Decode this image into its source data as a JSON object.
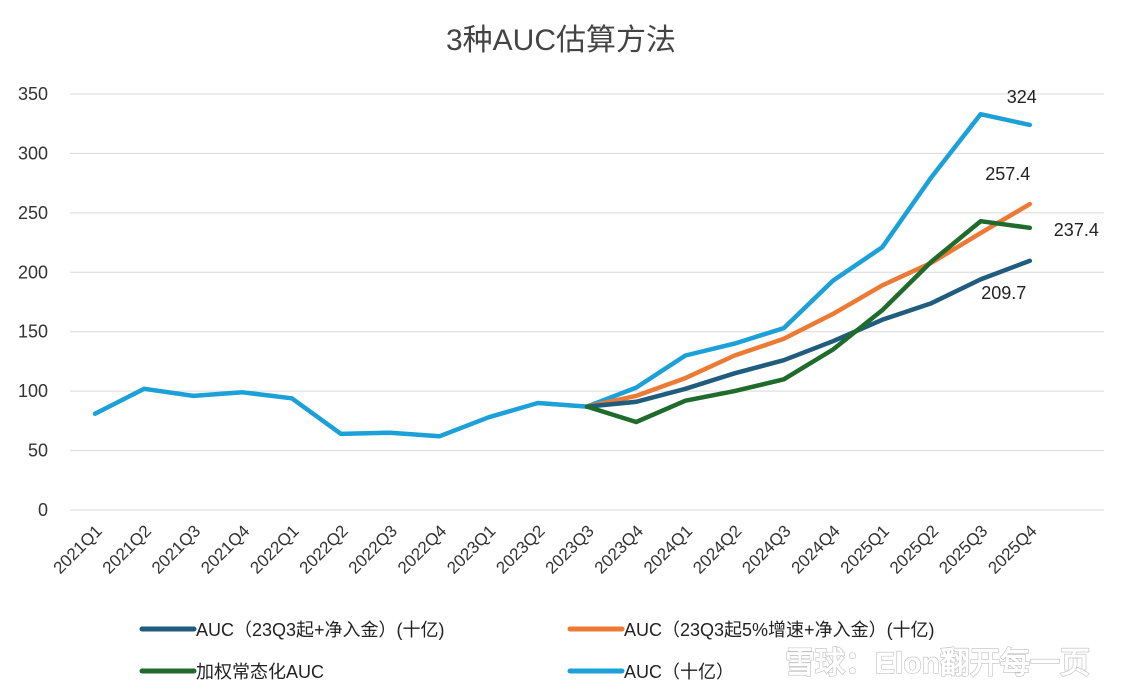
{
  "chart_data": {
    "type": "line",
    "title": "3种AUC估算方法",
    "categories": [
      "2021Q1",
      "2021Q2",
      "2021Q3",
      "2021Q4",
      "2022Q1",
      "2022Q2",
      "2022Q3",
      "2022Q4",
      "2023Q1",
      "2023Q2",
      "2023Q3",
      "2023Q4",
      "2024Q1",
      "2024Q2",
      "2024Q3",
      "2024Q4",
      "2025Q1",
      "2025Q2",
      "2025Q3",
      "2025Q4"
    ],
    "ylim": [
      0,
      350
    ],
    "yticks": [
      0,
      50,
      100,
      150,
      200,
      250,
      300,
      350
    ],
    "grid": true,
    "legend_position": "bottom",
    "series": [
      {
        "name": "AUC（23Q3起+净入金）(十亿)",
        "color": "#1f5c7e",
        "values": [
          null,
          null,
          null,
          null,
          null,
          null,
          null,
          null,
          null,
          null,
          87,
          91,
          102,
          115,
          126,
          142,
          160,
          174,
          194,
          209.7
        ]
      },
      {
        "name": "AUC（23Q3起5%增速+净入金）(十亿)",
        "color": "#ec7a35",
        "values": [
          null,
          null,
          null,
          null,
          null,
          null,
          null,
          null,
          null,
          null,
          87,
          96,
          111,
          130,
          144,
          165,
          189,
          208,
          233,
          257.4
        ]
      },
      {
        "name": "加权常态化AUC",
        "color": "#1e6b2b",
        "values": [
          null,
          null,
          null,
          null,
          null,
          null,
          null,
          null,
          null,
          null,
          87,
          74,
          92,
          100,
          110,
          135,
          168,
          209,
          243,
          237.4
        ]
      },
      {
        "name": "AUC（十亿）",
        "color": "#1ba0d8",
        "values": [
          81,
          102,
          96,
          99,
          94,
          64,
          65,
          62,
          78,
          90,
          87,
          103,
          130,
          140,
          153,
          193,
          221,
          280,
          333,
          324
        ]
      }
    ],
    "data_labels": [
      {
        "text": "324",
        "series": 3,
        "index": 19
      },
      {
        "text": "257.4",
        "series": 1,
        "index": 19
      },
      {
        "text": "237.4",
        "series": 2,
        "index": 19
      },
      {
        "text": "209.7",
        "series": 0,
        "index": 19
      }
    ]
  },
  "watermark": "雪球：Elon翻开每一页"
}
